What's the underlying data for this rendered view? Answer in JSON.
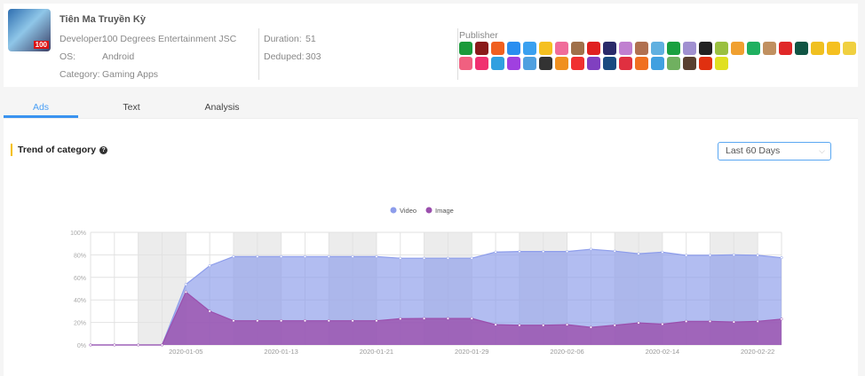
{
  "app": {
    "title": "Tiên Ma Truyền Kỳ",
    "icon_badge": "100",
    "developer_label": "Developer:",
    "developer": "100 Degrees Entertainment JSC",
    "os_label": "OS:",
    "os": "Android",
    "category_label": "Category:",
    "category": "Gaming Apps",
    "duration_label": "Duration:",
    "duration": "51",
    "deduped_label": "Deduped:",
    "deduped": "303"
  },
  "publisher": {
    "label": "Publisher",
    "icon_colors": [
      "#1a9a3a",
      "#8a1a1a",
      "#f06020",
      "#2a8ef0",
      "#3aa0f0",
      "#f5c020",
      "#f06c9a",
      "#a0704a",
      "#e02020",
      "#2a2a6a",
      "#c080d0",
      "#b07050",
      "#60b0e0",
      "#1aa040",
      "#a090d0",
      "#222222",
      "#9ac040",
      "#f0a030",
      "#20b060",
      "#c09060",
      "#e02828",
      "#115544",
      "#f0c020",
      "#f5c020",
      "#f0d040",
      "#f06080",
      "#f03070",
      "#30a0e0",
      "#a040e0",
      "#50a0e0",
      "#333333",
      "#f09020",
      "#f03030",
      "#8040c0",
      "#1a4a80",
      "#e03040",
      "#f07020",
      "#40a0e0",
      "#70b060",
      "#5a4030",
      "#e03010",
      "#e0e020"
    ]
  },
  "tabs": [
    {
      "label": "Ads"
    },
    {
      "label": "Text"
    },
    {
      "label": "Analysis"
    }
  ],
  "section": {
    "title": "Trend of category",
    "help_icon": "?",
    "range": "Last 60 Days",
    "chevron": "⌵"
  },
  "chart_data": {
    "type": "area",
    "legend_position": "top-center",
    "series": [
      {
        "name": "Video",
        "color": "#8d9deb",
        "values": [
          0,
          0,
          0,
          0,
          53.7,
          70.4,
          78.5,
          78.5,
          78.5,
          78.5,
          78.5,
          78.5,
          78.5,
          77,
          77,
          77,
          77,
          82.5,
          83,
          83,
          83,
          85,
          83.3,
          81,
          82.4,
          79.6,
          79.6,
          80,
          79.6,
          77.5
        ]
      },
      {
        "name": "Image",
        "color": "#9b4fad",
        "values": [
          0,
          0,
          0,
          0,
          47,
          30,
          21.5,
          21.5,
          21.5,
          21.5,
          21.5,
          21.5,
          21.5,
          23.3,
          23.5,
          23.5,
          23.5,
          18,
          17.5,
          17.5,
          18,
          15.7,
          17.5,
          19.6,
          18.5,
          21,
          21,
          20.4,
          21,
          23
        ]
      }
    ],
    "x": [
      "2019-12-28",
      "2019-12-30",
      "2020-01-01",
      "2020-01-03",
      "2020-01-05",
      "2020-01-07",
      "2020-01-09",
      "2020-01-11",
      "2020-01-13",
      "2020-01-15",
      "2020-01-17",
      "2020-01-19",
      "2020-01-21",
      "2020-01-23",
      "2020-01-25",
      "2020-01-27",
      "2020-01-29",
      "2020-01-31",
      "2020-02-02",
      "2020-02-04",
      "2020-02-06",
      "2020-02-08",
      "2020-02-10",
      "2020-02-12",
      "2020-02-14",
      "2020-02-16",
      "2020-02-18",
      "2020-02-20",
      "2020-02-22",
      "2020-02-24"
    ],
    "x_tick_labels": [
      "2020-01-05",
      "2020-01-13",
      "2020-01-21",
      "2020-01-29",
      "2020-02-06",
      "2020-02-14",
      "2020-02-22"
    ],
    "y_tick_labels": [
      "0%",
      "20%",
      "40%",
      "60%",
      "80%",
      "100%"
    ],
    "ylim": [
      0,
      100
    ],
    "grid": true
  }
}
